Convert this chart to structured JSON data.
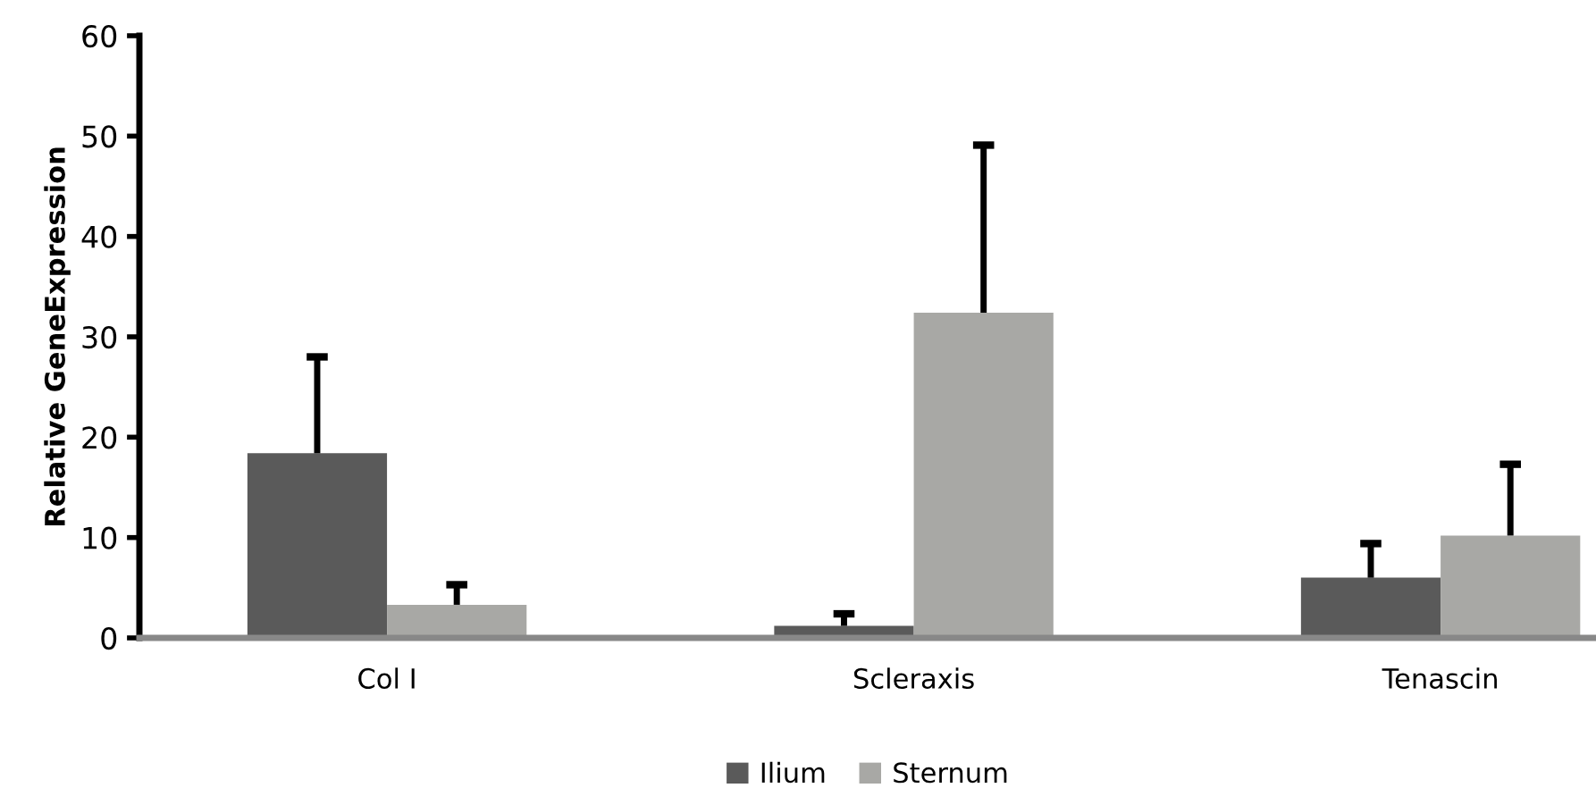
{
  "chart_data": {
    "type": "bar",
    "ylabel": "Relative GeneExpression",
    "categories": [
      "Col I",
      "Scleraxis",
      "Tenascin"
    ],
    "series": [
      {
        "name": "Ilium",
        "color": "#5a5a5a",
        "values": [
          18.4,
          1.2,
          6.0
        ],
        "errors": [
          [
            18.4,
            28.0
          ],
          [
            1.2,
            2.4
          ],
          [
            6.0,
            9.4
          ]
        ]
      },
      {
        "name": "Sternum",
        "color": "#a8a8a5",
        "values": [
          3.3,
          32.4,
          10.2
        ],
        "errors": [
          [
            3.3,
            5.3
          ],
          [
            32.4,
            49.1
          ],
          [
            10.2,
            17.3
          ]
        ]
      }
    ],
    "ylim": [
      0,
      60
    ],
    "yticks": [
      0,
      10,
      20,
      30,
      40,
      50,
      60
    ],
    "grid": false,
    "legend": "bottom"
  }
}
